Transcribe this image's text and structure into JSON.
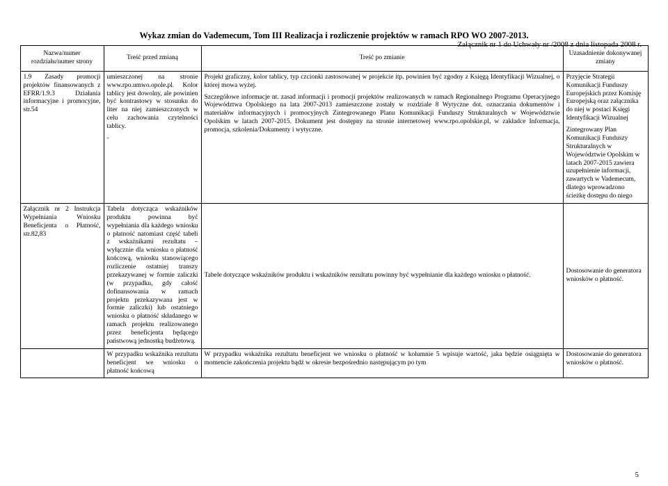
{
  "header_line": "Załącznik nr 1 do Uchwały nr       /2008 z dnia     listopada 2008 r.",
  "main_title": "Wykaz zmian do Vademecum, Tom III Realizacja i rozliczenie projektów w ramach RPO WO 2007-2013.",
  "columns": {
    "c1": "Nazwa/numer rozdziału/numer strony",
    "c2": "Treść przed zmianą",
    "c3": "Treść po zmianie",
    "c4": "Uzasadnienie dokonywanej zmiany"
  },
  "rows": [
    {
      "c1": "1.9 Zasady promocji projektów finansowanych z EFRR/1.9.3 Działania informacyjne i promocyjne, str.54",
      "c2a": "umieszczonej na stronie www.rpo.umwo.opole.pl. Kolor tablicy jest dowolny, ale powinien być kontrastowy w stosunku do liter na niej zamieszczonych w celu zachowania czytelności tablicy.",
      "c2b": "-",
      "c3a": "Projekt graficzny, kolor tablicy, typ czcionki zastosowanej w projekcie itp. powinien być zgodny z Księgą Identyfikacji Wizualnej, o której mowa wyżej.",
      "c3b": "Szczegółowe informacje nt. zasad informacji i promocji projektów realizowanych w ramach Regionalnego Programu Operacyjnego Województwa Opolskiego na lata 2007-2013 zamieszczone zostały w rozdziale 8 Wytyczne dot. oznaczania dokumentów i materiałów informacyjnych i promocyjnych Zintegrowanego Planu Komunikacji Funduszy Strukturalnych w Województwie Opolskim w latach 2007-2015. Dokument jest dostępny na stronie internetowej www.rpo.opolskie.pl, w zakładce Informacja, promocja, szkolenia/Dokumenty i wytyczne.",
      "c4a": "Przyjęcie Strategii Komunikacji Funduszy Europejskich przez Komisję Europejską oraz załącznika do niej w postaci Księgi Identyfikacji Wizualnej",
      "c4b": "Zintegrowany Plan Komunikacji Funduszy Strukturalnych w Województwie Opolskim w latach 2007-2015 zawiera uzupełnienie informacji, zawartych w Vademecum, dlatego wprowadzono ścieżkę dostępu do niego"
    },
    {
      "c1": "Załącznik nr 2 Instrukcja Wypełniania Wniosku Beneficjenta o Płatność, str.82,83",
      "c2": "Tabela dotycząca wskaźników produktu powinna być wypełniania dla każdego wniosku o płatność natomiast część tabeli z wskaźnikami rezultatu – wyłącznie dla wniosku o płatność końcową, wniosku stanowiącego rozliczenie ostatniej transzy przekazywanej w formie zaliczki (w przypadku, gdy całość dofinansowania w ramach projektu przekazywana jest w formie zaliczki) lub ostatniego wniosku o płatność składanego w ramach projektu realizowanego przez beneficjenta będącego państwową jednostką budżetową.",
      "c3": "Tabele dotyczące wskaźników produktu i wskaźników rezultatu powinny być wypełnianie dla każdego wniosku o płatność.",
      "c4": "Dostosowanie do generatora wniosków o płatność."
    },
    {
      "c1": "",
      "c2": "W przypadku wskaźnika rezultatu beneficjent we wniosku o płatność końcową",
      "c3": "W przypadku wskaźnika rezultatu beneficjent we wniosku o płatność w kolumnie 5  wpisuje wartość, jaka będzie osiągnięta w momencie zakończenia projektu bądź w okresie bezpośrednio następującym po tym",
      "c4": "Dostosowanie do generatora wniosków o płatność."
    }
  ],
  "page_number": "5"
}
